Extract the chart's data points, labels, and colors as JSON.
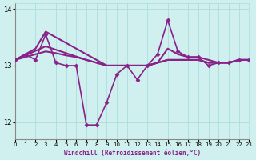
{
  "bg_color": "#cff0ee",
  "grid_color": "#aadddd",
  "line_color": "#882288",
  "marker_color": "#882288",
  "xlabel": "Windchill (Refroidissement éolien,°C)",
  "ylabel": "",
  "xlim": [
    0,
    23
  ],
  "ylim": [
    11.7,
    14.1
  ],
  "yticks": [
    12,
    13,
    14
  ],
  "xticks": [
    0,
    1,
    2,
    3,
    4,
    5,
    6,
    7,
    8,
    9,
    10,
    11,
    12,
    13,
    14,
    15,
    16,
    17,
    18,
    19,
    20,
    21,
    22,
    23
  ],
  "series": [
    {
      "x": [
        0,
        1,
        2,
        3,
        4,
        5,
        6,
        7,
        8,
        9,
        10,
        11,
        12,
        13,
        14,
        15,
        16,
        17,
        18,
        19,
        20,
        21,
        22,
        23
      ],
      "y": [
        13.1,
        13.2,
        13.1,
        13.55,
        13.05,
        13.0,
        13.0,
        11.95,
        11.95,
        12.35,
        12.85,
        13.0,
        12.75,
        13.0,
        13.2,
        13.8,
        13.25,
        13.15,
        13.15,
        13.0,
        13.05,
        13.05,
        13.1,
        13.1
      ],
      "linewidth": 1.2,
      "marker": "D",
      "markersize": 2.5,
      "zorder": 3
    },
    {
      "x": [
        0,
        1,
        2,
        3,
        4,
        5,
        6,
        7,
        8,
        9,
        10,
        11,
        12,
        13,
        14,
        15,
        16,
        17,
        18,
        19,
        20,
        21,
        22,
        23
      ],
      "y": [
        13.1,
        13.18,
        13.26,
        13.34,
        13.28,
        13.22,
        13.16,
        13.1,
        13.05,
        13.0,
        13.0,
        13.0,
        13.0,
        13.0,
        13.05,
        13.1,
        13.1,
        13.1,
        13.1,
        13.05,
        13.05,
        13.05,
        13.1,
        13.1
      ],
      "linewidth": 1.5,
      "marker": null,
      "markersize": 0,
      "zorder": 2
    },
    {
      "x": [
        0,
        1,
        2,
        3,
        4,
        5,
        6,
        7,
        8,
        9,
        10,
        11,
        12,
        13,
        14,
        15,
        16,
        17,
        18,
        19,
        20,
        21,
        22,
        23
      ],
      "y": [
        13.1,
        13.2,
        13.3,
        13.6,
        13.5,
        13.4,
        13.3,
        13.2,
        13.1,
        13.0,
        13.0,
        13.0,
        13.0,
        13.0,
        13.05,
        13.3,
        13.2,
        13.15,
        13.15,
        13.1,
        13.05,
        13.05,
        13.1,
        13.1
      ],
      "linewidth": 1.5,
      "marker": null,
      "markersize": 0,
      "zorder": 2
    },
    {
      "x": [
        0,
        1,
        2,
        3,
        4,
        5,
        6,
        7,
        8,
        9,
        10,
        11,
        12,
        13,
        14,
        15,
        16,
        17,
        18,
        19,
        20,
        21,
        22,
        23
      ],
      "y": [
        13.1,
        13.15,
        13.2,
        13.25,
        13.22,
        13.18,
        13.15,
        13.1,
        13.05,
        13.0,
        13.0,
        13.0,
        13.0,
        13.0,
        13.05,
        13.1,
        13.1,
        13.1,
        13.1,
        13.05,
        13.05,
        13.05,
        13.1,
        13.1
      ],
      "linewidth": 1.5,
      "marker": null,
      "markersize": 0,
      "zorder": 2
    }
  ]
}
